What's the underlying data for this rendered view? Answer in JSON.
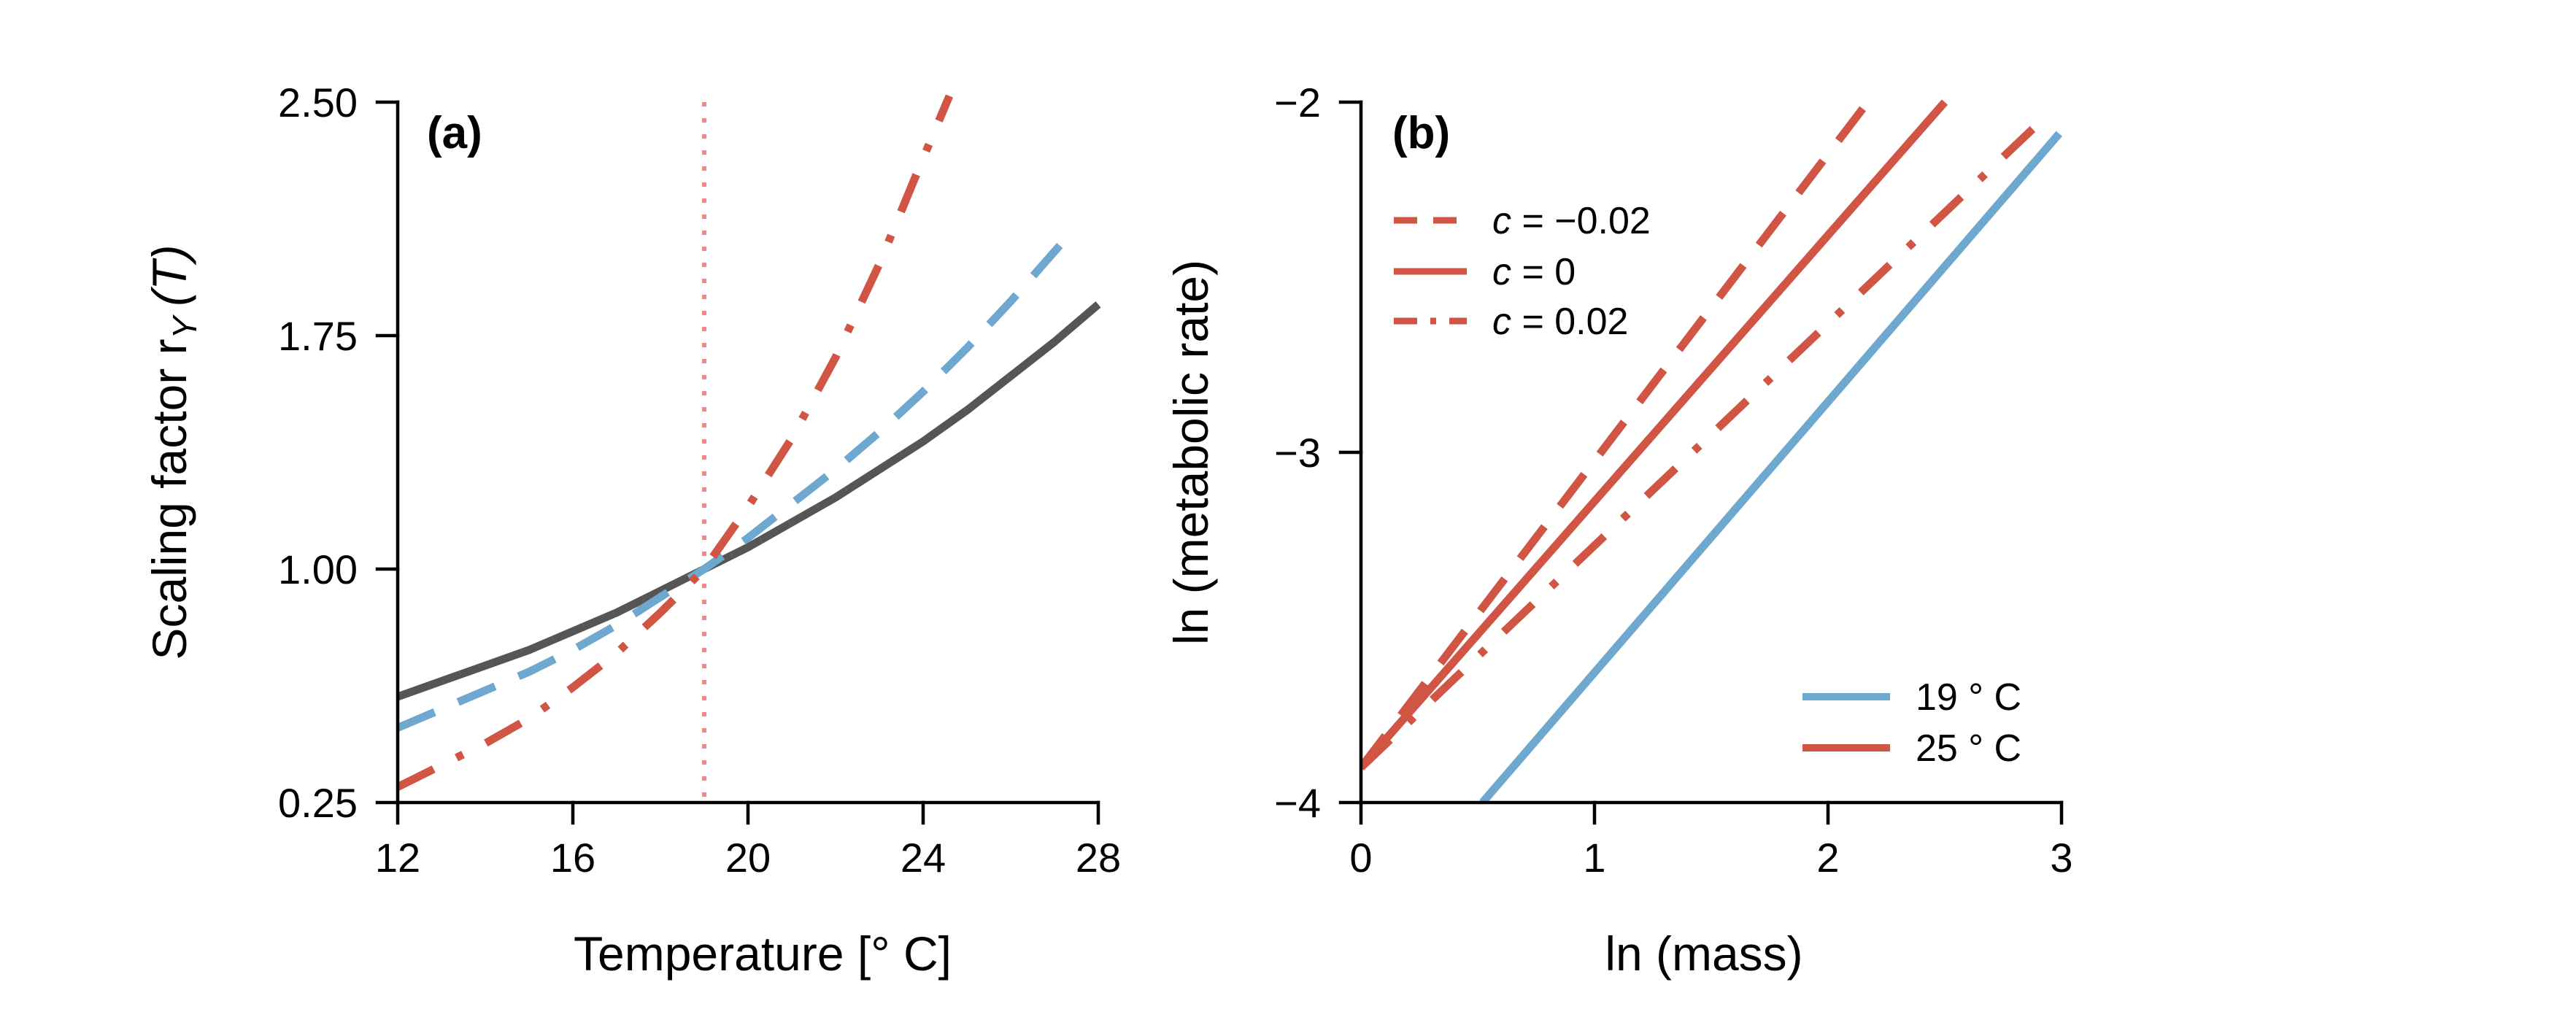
{
  "colors": {
    "black_curve": "#555555",
    "grey_points": "#c8c8c8",
    "blue": "#6fa8cf",
    "red": "#d05545",
    "ref_line": "#ee8a85"
  },
  "chart_data": [
    {
      "id": "a",
      "type": "line",
      "panel_label": "(a)",
      "xlabel": "Temperature [° C]",
      "ylabel": "Scaling factor r",
      "ylabel_sub": "Y",
      "ylabel_suffix": "(T)",
      "xlim": [
        12,
        28
      ],
      "ylim": [
        0.25,
        2.5
      ],
      "xticks": [
        12,
        16,
        20,
        24,
        28
      ],
      "ytick_values": [
        0.25,
        1.0,
        1.75,
        2.5
      ],
      "ytick_labels": [
        "0.25",
        "1.00",
        "1.75",
        "2.50"
      ],
      "reference_x": 19,
      "series": [
        {
          "key": "grey_curve",
          "style": "solid",
          "color_key": "black_curve",
          "x": [
            12,
            13,
            14,
            15,
            16,
            17,
            18,
            19,
            20,
            21,
            22,
            23,
            24,
            25,
            26,
            27,
            28
          ],
          "y": [
            0.59,
            0.64,
            0.69,
            0.74,
            0.8,
            0.86,
            0.93,
            1.0,
            1.07,
            1.15,
            1.23,
            1.32,
            1.41,
            1.51,
            1.62,
            1.73,
            1.85
          ]
        },
        {
          "key": "grey_dots",
          "style": "dotted",
          "color_key": "grey_points",
          "x": [
            12,
            13,
            14,
            15,
            16,
            17,
            18,
            19,
            20,
            21,
            22,
            23,
            24,
            25,
            26,
            27,
            28
          ],
          "y": [
            0.6,
            0.645,
            0.695,
            0.75,
            0.81,
            0.87,
            0.935,
            1.0,
            1.07,
            1.15,
            1.24,
            1.33,
            1.42,
            1.52,
            1.63,
            1.75,
            1.88
          ]
        },
        {
          "key": "blue_dashed",
          "style": "dashed",
          "color_key": "blue",
          "x": [
            12,
            13,
            14,
            15,
            16,
            17,
            18,
            19,
            20,
            21,
            22,
            23,
            24,
            25,
            26,
            27,
            27.5
          ],
          "y": [
            0.49,
            0.55,
            0.61,
            0.67,
            0.74,
            0.82,
            0.91,
            1.0,
            1.1,
            1.21,
            1.32,
            1.44,
            1.57,
            1.71,
            1.86,
            2.02,
            2.1
          ]
        },
        {
          "key": "red_dashdot",
          "style": "dashdot",
          "color_key": "red",
          "x": [
            12,
            13,
            14,
            15,
            16,
            17,
            18,
            19,
            20,
            21,
            22,
            23,
            24,
            24.6
          ],
          "y": [
            0.3,
            0.37,
            0.44,
            0.52,
            0.62,
            0.73,
            0.86,
            1.0,
            1.2,
            1.42,
            1.68,
            1.98,
            2.32,
            2.52
          ]
        }
      ]
    },
    {
      "id": "b",
      "type": "line",
      "panel_label": "(b)",
      "xlabel": "ln (mass)",
      "ylabel": "ln (metabolic rate)",
      "xlim": [
        0,
        3
      ],
      "ylim": [
        -4,
        -2
      ],
      "xticks": [
        0,
        1,
        2,
        3
      ],
      "ytick_values": [
        -4,
        -3,
        -2
      ],
      "ytick_labels": [
        "−4",
        "−3",
        "−2"
      ],
      "series": [
        {
          "key": "blue_19",
          "style": "solid",
          "color_key": "blue",
          "x": [
            0.52,
            2.99
          ],
          "y": [
            -4.0,
            -2.09
          ]
        },
        {
          "key": "red_c0",
          "style": "solid",
          "color_key": "red",
          "x": [
            0,
            2.5
          ],
          "y": [
            -3.9,
            -2.0
          ]
        },
        {
          "key": "red_cneg",
          "style": "dashed",
          "color_key": "red",
          "x": [
            0,
            2.17
          ],
          "y": [
            -3.9,
            -2.0
          ]
        },
        {
          "key": "red_cpos",
          "style": "dashdot",
          "color_key": "red",
          "x": [
            0,
            2.95
          ],
          "y": [
            -3.9,
            -2.03
          ]
        }
      ],
      "legend_c": {
        "var": "c",
        "items": [
          {
            "style": "dashed",
            "text": " = −0.02"
          },
          {
            "style": "solid",
            "text": " = 0"
          },
          {
            "style": "dashdot",
            "text": " = 0.02"
          }
        ]
      },
      "legend_temp": {
        "items": [
          {
            "color_key": "blue",
            "text": "19 ° C"
          },
          {
            "color_key": "red",
            "text": "25 ° C"
          }
        ]
      }
    }
  ]
}
